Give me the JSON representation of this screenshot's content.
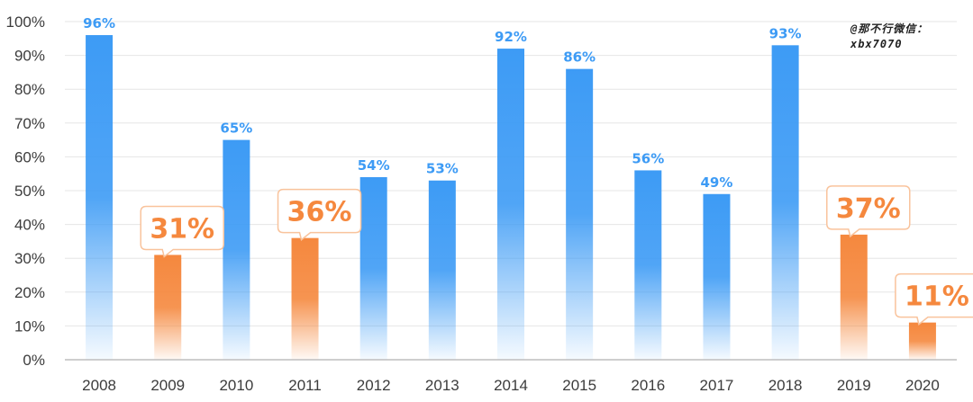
{
  "chart_data": {
    "type": "bar",
    "categories": [
      "2008",
      "2009",
      "2010",
      "2011",
      "2012",
      "2013",
      "2014",
      "2015",
      "2016",
      "2017",
      "2018",
      "2019",
      "2020"
    ],
    "values": [
      96,
      31,
      65,
      36,
      54,
      53,
      92,
      86,
      56,
      49,
      93,
      37,
      11
    ],
    "labels": [
      "96%",
      "31%",
      "65%",
      "36%",
      "54%",
      "53%",
      "92%",
      "86%",
      "56%",
      "49%",
      "93%",
      "37%",
      "11%"
    ],
    "highlighted": [
      false,
      true,
      false,
      true,
      false,
      false,
      false,
      false,
      false,
      false,
      false,
      true,
      true
    ],
    "y_ticks": [
      "0%",
      "10%",
      "20%",
      "30%",
      "40%",
      "50%",
      "60%",
      "70%",
      "80%",
      "90%",
      "100%"
    ],
    "ylim": [
      0,
      100
    ],
    "y_unit": "percent",
    "grid": true,
    "colors": {
      "normal_bar": "#3d9bf5",
      "highlight_bar": "#f5883e",
      "normal_label": "#3d9bf5",
      "highlight_label": "#f5883e",
      "grid": "#e6e6e6",
      "axis": "#bdbdbd"
    }
  },
  "watermark": {
    "line1": "@那不行微信：",
    "line2": "xbx7070"
  }
}
